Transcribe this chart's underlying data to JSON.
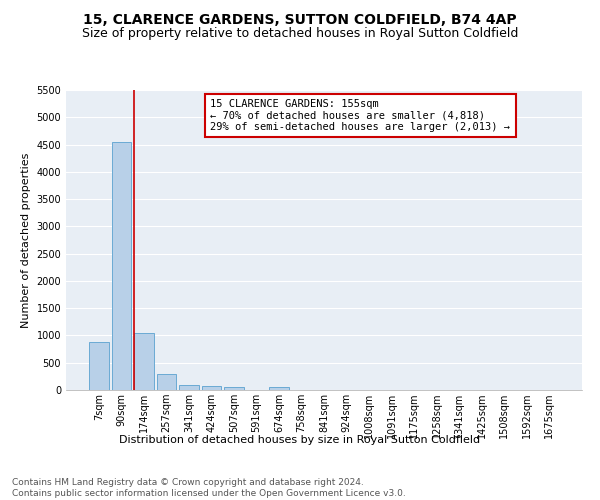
{
  "title1": "15, CLARENCE GARDENS, SUTTON COLDFIELD, B74 4AP",
  "title2": "Size of property relative to detached houses in Royal Sutton Coldfield",
  "xlabel": "Distribution of detached houses by size in Royal Sutton Coldfield",
  "ylabel": "Number of detached properties",
  "footnote": "Contains HM Land Registry data © Crown copyright and database right 2024.\nContains public sector information licensed under the Open Government Licence v3.0.",
  "categories": [
    "7sqm",
    "90sqm",
    "174sqm",
    "257sqm",
    "341sqm",
    "424sqm",
    "507sqm",
    "591sqm",
    "674sqm",
    "758sqm",
    "841sqm",
    "924sqm",
    "1008sqm",
    "1091sqm",
    "1175sqm",
    "1258sqm",
    "1341sqm",
    "1425sqm",
    "1508sqm",
    "1592sqm",
    "1675sqm"
  ],
  "values": [
    880,
    4550,
    1050,
    290,
    100,
    80,
    55,
    0,
    55,
    0,
    0,
    0,
    0,
    0,
    0,
    0,
    0,
    0,
    0,
    0,
    0
  ],
  "bar_color": "#b8d0e8",
  "bar_edge_color": "#6aaad4",
  "highlight_line_color": "#cc0000",
  "annotation_text": "15 CLARENCE GARDENS: 155sqm\n← 70% of detached houses are smaller (4,818)\n29% of semi-detached houses are larger (2,013) →",
  "annotation_box_color": "#ffffff",
  "annotation_box_edge": "#cc0000",
  "ylim": [
    0,
    5500
  ],
  "yticks": [
    0,
    500,
    1000,
    1500,
    2000,
    2500,
    3000,
    3500,
    4000,
    4500,
    5000,
    5500
  ],
  "background_color": "#e8eef5",
  "grid_color": "#ffffff",
  "title1_fontsize": 10,
  "title2_fontsize": 9,
  "xlabel_fontsize": 8,
  "ylabel_fontsize": 8,
  "footnote_fontsize": 6.5,
  "tick_fontsize": 7,
  "annotation_fontsize": 7.5
}
